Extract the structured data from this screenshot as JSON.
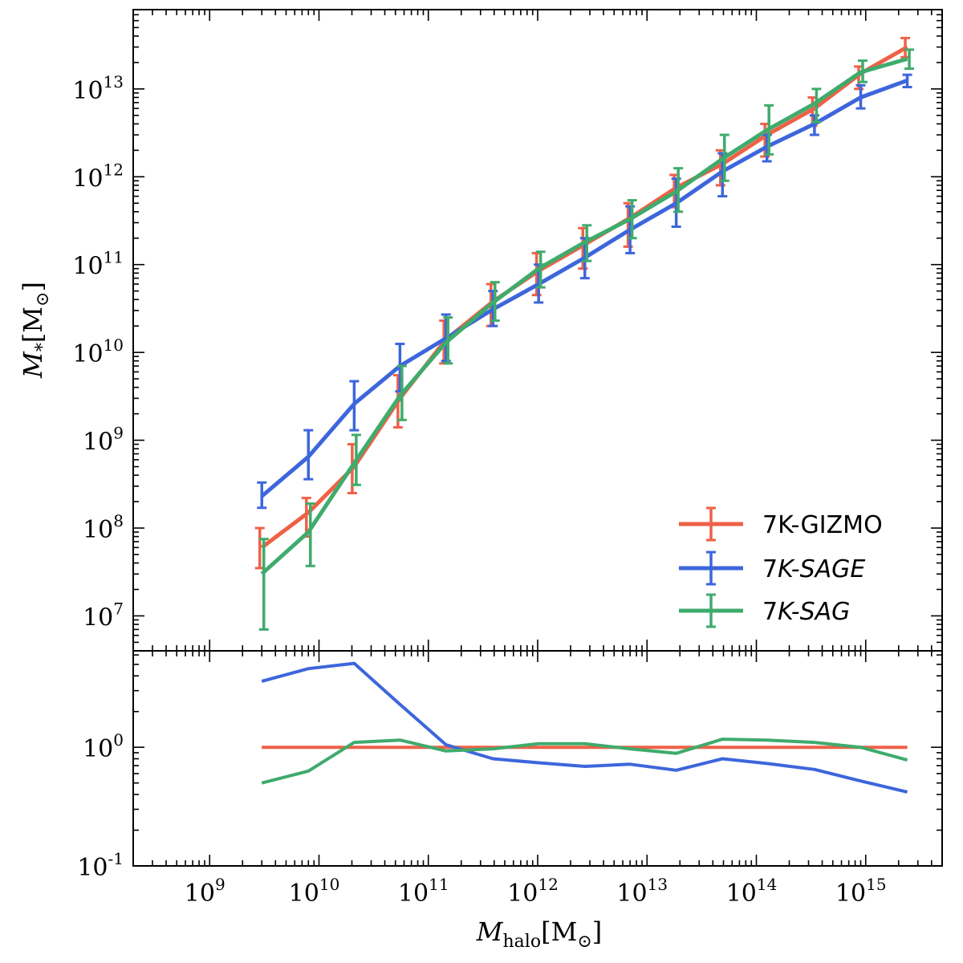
{
  "chart_data": [
    {
      "type": "line",
      "panel": "top",
      "xscale": "log",
      "yscale": "log",
      "xlim": [
        200000000,
        5000000000000000
      ],
      "ylim": [
        4000000,
        80000000000000
      ],
      "ylabel": "M_*[M_⊙]",
      "ylabel_parts": {
        "sym": "M",
        "sub": "*",
        "unit": "[M",
        "unit_sub": "⊙",
        "unit_end": "]"
      },
      "ytick_labels": [
        "10^7",
        "10^8",
        "10^9",
        "10^10",
        "10^11",
        "10^12",
        "10^13"
      ],
      "x": [
        3000000000.0,
        8000000000.0,
        21000000000.0,
        55000000000.0,
        145000000000.0,
        390000000000.0,
        1020000000000.0,
        2700000000000.0,
        7000000000000.0,
        18500000000000.0,
        49000000000000.0,
        125000000000000.0,
        340000000000000.0,
        900000000000000.0,
        2400000000000000.0
      ],
      "series": [
        {
          "name": "7K-GIZMO",
          "color": "#ee6147",
          "values": [
            60000000.0,
            150000000.0,
            500000000.0,
            3000000000.0,
            14000000000.0,
            38000000000.0,
            85000000000.0,
            170000000000.0,
            340000000000.0,
            750000000000.0,
            1400000000000.0,
            3000000000000.0,
            6000000000000.0,
            15000000000000.0,
            30000000000000.0
          ],
          "err_lo": [
            35000000.0,
            80000000.0,
            250000000.0,
            1400000000.0,
            7500000000.0,
            20000000000.0,
            45000000000.0,
            90000000000.0,
            160000000000.0,
            450000000000.0,
            800000000000.0,
            1700000000000.0,
            3800000000000.0,
            10000000000000.0,
            23000000000000.0
          ],
          "err_hi": [
            100000000.0,
            220000000.0,
            900000000.0,
            5500000000.0,
            23000000000.0,
            60000000000.0,
            135000000000.0,
            260000000000.0,
            500000000000.0,
            1050000000000.0,
            2000000000000.0,
            4000000000000.0,
            8000000000000.0,
            18000000000000.0,
            38000000000000.0
          ]
        },
        {
          "name": "7K-SAGE",
          "color": "#3d66dc",
          "values": [
            230000000.0,
            650000000.0,
            2600000000.0,
            7000000000.0,
            14500000000.0,
            31000000000.0,
            60000000000.0,
            120000000000.0,
            250000000000.0,
            500000000000.0,
            1150000000000.0,
            2200000000000.0,
            4000000000000.0,
            8000000000000.0,
            12500000000000.0
          ],
          "err_lo": [
            170000000.0,
            360000000.0,
            1300000000.0,
            3600000000.0,
            8000000000.0,
            20000000000.0,
            37000000000.0,
            70000000000.0,
            135000000000.0,
            270000000000.0,
            600000000000.0,
            1500000000000.0,
            3000000000000.0,
            6000000000000.0,
            10500000000000.0
          ],
          "err_hi": [
            330000000.0,
            1300000000.0,
            4700000000.0,
            12500000000.0,
            27000000000.0,
            50000000000.0,
            100000000000.0,
            200000000000.0,
            460000000000.0,
            950000000000.0,
            1850000000000.0,
            3000000000000.0,
            5000000000000.0,
            11000000000000.0,
            14500000000000.0
          ]
        },
        {
          "name": "7K-SAG",
          "color": "#3fab6c",
          "values": [
            30000000.0,
            90000000.0,
            550000000.0,
            3200000000.0,
            13000000000.0,
            37000000000.0,
            90000000000.0,
            180000000000.0,
            330000000000.0,
            680000000000.0,
            1600000000000.0,
            3400000000000.0,
            6800000000000.0,
            15500000000000.0,
            22000000000000.0
          ],
          "err_lo": [
            7000000.0,
            37000000.0,
            310000000.0,
            1700000000.0,
            7500000000.0,
            23000000000.0,
            55000000000.0,
            110000000000.0,
            200000000000.0,
            400000000000.0,
            900000000000.0,
            1800000000000.0,
            4200000000000.0,
            12000000000000.0,
            17000000000000.0
          ],
          "err_hi": [
            75000000.0,
            190000000.0,
            1150000000.0,
            7000000000.0,
            25000000000.0,
            63000000000.0,
            140000000000.0,
            280000000000.0,
            540000000000.0,
            1250000000000.0,
            3000000000000.0,
            6500000000000.0,
            10000000000000.0,
            21000000000000.0,
            28000000000000.0
          ]
        }
      ],
      "legend": {
        "position": "lower right",
        "entries": [
          "7K-GIZMO",
          "7K-SAGE",
          "7K-SAG"
        ]
      },
      "legend_styles": [
        "normal",
        "italic-partial",
        "italic-partial"
      ]
    },
    {
      "type": "line",
      "panel": "bottom",
      "xscale": "log",
      "yscale": "log",
      "xlim": [
        200000000,
        5000000000000000
      ],
      "ylim": [
        0.1,
        6.5
      ],
      "xlabel": "M_halo[M_⊙]",
      "xlabel_parts": {
        "sym": "M",
        "sub": "halo",
        "unit": "[M",
        "unit_sub": "⊙",
        "unit_end": "]"
      },
      "xtick_labels": [
        "10^9",
        "10^10",
        "10^11",
        "10^12",
        "10^13",
        "10^14",
        "10^15"
      ],
      "ytick_labels": [
        "10^-1",
        "10^0"
      ],
      "x": [
        3000000000.0,
        8000000000.0,
        21000000000.0,
        55000000000.0,
        145000000000.0,
        390000000000.0,
        1020000000000.0,
        2700000000000.0,
        7000000000000.0,
        18500000000000.0,
        49000000000000.0,
        125000000000000.0,
        340000000000000.0,
        900000000000000.0,
        2400000000000000.0
      ],
      "series": [
        {
          "name": "7K-GIZMO",
          "color": "#ee6147",
          "values": [
            1.0,
            1.0,
            1.0,
            1.0,
            1.0,
            1.0,
            1.0,
            1.0,
            1.0,
            1.0,
            1.0,
            1.0,
            1.0,
            1.0,
            1.0
          ]
        },
        {
          "name": "7K-SAGE",
          "color": "#3d66dc",
          "values": [
            3.6,
            4.6,
            5.1,
            2.3,
            1.05,
            0.8,
            0.74,
            0.69,
            0.72,
            0.64,
            0.8,
            0.73,
            0.65,
            0.52,
            0.42
          ]
        },
        {
          "name": "7K-SAG",
          "color": "#3fab6c",
          "values": [
            0.5,
            0.63,
            1.1,
            1.15,
            0.93,
            0.97,
            1.07,
            1.07,
            0.97,
            0.89,
            1.17,
            1.15,
            1.1,
            1.0,
            0.78
          ]
        }
      ]
    }
  ]
}
